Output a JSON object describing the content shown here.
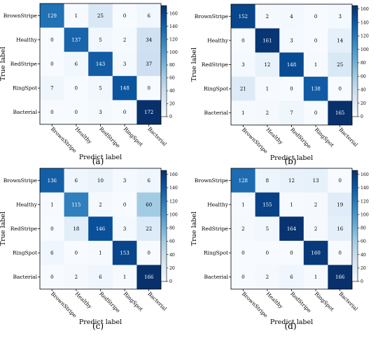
{
  "chart_data": [
    {
      "type": "heatmap",
      "caption": "(a)",
      "xlabel": "Predict label",
      "ylabel": "True label",
      "categories": [
        "BrownStripe",
        "Healthy",
        "RedStripe",
        "RingSpot",
        "Bacterial"
      ],
      "matrix": [
        [
          129,
          1,
          25,
          0,
          6
        ],
        [
          0,
          137,
          5,
          2,
          34
        ],
        [
          0,
          6,
          143,
          3,
          37
        ],
        [
          7,
          0,
          5,
          148,
          0
        ],
        [
          0,
          0,
          3,
          0,
          172
        ]
      ],
      "colorbar": {
        "range": [
          0,
          172
        ],
        "ticks": [
          0,
          20,
          40,
          60,
          80,
          100,
          120,
          140,
          160
        ]
      }
    },
    {
      "type": "heatmap",
      "caption": "(b)",
      "xlabel": "Predict label",
      "ylabel": "True label",
      "categories": [
        "BrownStripe",
        "Healthy",
        "RedStripe",
        "RingSpot",
        "Bacterial"
      ],
      "matrix": [
        [
          152,
          2,
          4,
          0,
          3
        ],
        [
          0,
          161,
          3,
          0,
          14
        ],
        [
          3,
          12,
          148,
          1,
          25
        ],
        [
          21,
          1,
          0,
          138,
          0
        ],
        [
          1,
          2,
          7,
          0,
          165
        ]
      ],
      "colorbar": {
        "range": [
          0,
          165
        ],
        "ticks": [
          0,
          20,
          40,
          60,
          80,
          100,
          120,
          140,
          160
        ]
      }
    },
    {
      "type": "heatmap",
      "caption": "(c)",
      "xlabel": "Predict label",
      "ylabel": "True label",
      "categories": [
        "BrownStripe",
        "Healthy",
        "RedStripe",
        "RingSpot",
        "Bacterial"
      ],
      "matrix": [
        [
          136,
          6,
          10,
          3,
          6
        ],
        [
          1,
          115,
          2,
          0,
          60
        ],
        [
          0,
          18,
          146,
          3,
          22
        ],
        [
          6,
          0,
          1,
          153,
          0
        ],
        [
          0,
          2,
          6,
          1,
          166
        ]
      ],
      "colorbar": {
        "range": [
          0,
          166
        ],
        "ticks": [
          0,
          20,
          40,
          60,
          80,
          100,
          120,
          140,
          160
        ]
      }
    },
    {
      "type": "heatmap",
      "caption": "(d)",
      "xlabel": "Predict label",
      "ylabel": "True label",
      "categories": [
        "BrownStripe",
        "Healthy",
        "RedStripe",
        "RingSpot",
        "Bacterial"
      ],
      "matrix": [
        [
          128,
          8,
          12,
          13,
          0
        ],
        [
          1,
          155,
          1,
          2,
          19
        ],
        [
          2,
          5,
          164,
          2,
          16
        ],
        [
          0,
          0,
          0,
          160,
          0
        ],
        [
          0,
          2,
          6,
          1,
          166
        ]
      ],
      "colorbar": {
        "range": [
          0,
          166
        ],
        "ticks": [
          0,
          20,
          40,
          60,
          80,
          100,
          120,
          140,
          160
        ]
      }
    }
  ],
  "colors": {
    "low": "#f7fbff",
    "mid": "#6baed6",
    "high": "#08306b"
  }
}
